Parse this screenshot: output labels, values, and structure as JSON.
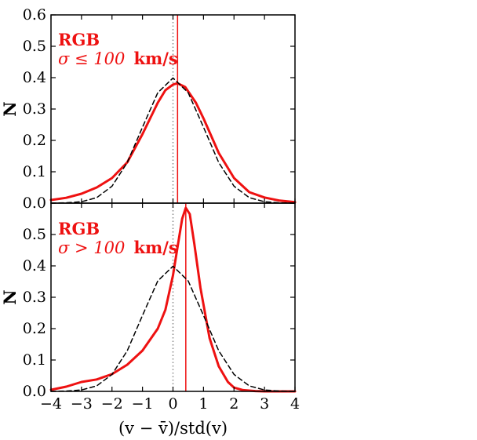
{
  "colors": {
    "primary": "#ee1111",
    "reference": "#000000",
    "zero_line": "#888888"
  },
  "chart_data": [
    {
      "type": "line",
      "panel": "top",
      "annotation": {
        "line1": "RGB",
        "line2_math": "σ ≤ 100",
        "line2_unit": "km/s"
      },
      "ylabel": "N",
      "xlim": [
        -4,
        4
      ],
      "ylim": [
        0,
        0.6
      ],
      "yticks": [
        "0.0",
        "0.1",
        "0.2",
        "0.3",
        "0.4",
        "0.5",
        "0.6"
      ],
      "vertical_line_x": 0.15,
      "series": [
        {
          "style": "solid-red",
          "x": [
            -4,
            -3.5,
            -3,
            -2.5,
            -2,
            -1.5,
            -1,
            -0.5,
            -0.25,
            0,
            0.15,
            0.4,
            0.75,
            1,
            1.5,
            2,
            2.5,
            3,
            3.5,
            4
          ],
          "y": [
            0.01,
            0.017,
            0.03,
            0.05,
            0.08,
            0.13,
            0.22,
            0.32,
            0.36,
            0.378,
            0.382,
            0.37,
            0.32,
            0.27,
            0.16,
            0.08,
            0.035,
            0.018,
            0.008,
            0.003
          ]
        },
        {
          "style": "dashed-black",
          "x": [
            -4,
            -3.5,
            -3,
            -2.5,
            -2,
            -1.5,
            -1,
            -0.5,
            0,
            0.5,
            1,
            1.5,
            2,
            2.5,
            3,
            3.5,
            4
          ],
          "y": [
            0.0001,
            0.0009,
            0.0044,
            0.0175,
            0.054,
            0.1295,
            0.242,
            0.352,
            0.399,
            0.352,
            0.242,
            0.1295,
            0.054,
            0.0175,
            0.0044,
            0.0009,
            0.0001
          ]
        }
      ]
    },
    {
      "type": "line",
      "panel": "bottom",
      "annotation": {
        "line1": "RGB",
        "line2_math": "σ > 100",
        "line2_unit": "km/s"
      },
      "ylabel": "N",
      "xlabel": "(v − v̄)/std(v)",
      "xlim": [
        -4,
        4
      ],
      "ylim": [
        0,
        0.6
      ],
      "yticks": [
        "0.0",
        "0.1",
        "0.2",
        "0.3",
        "0.4",
        "0.5"
      ],
      "xticks": [
        "−4",
        "−3",
        "−2",
        "−1",
        "0",
        "1",
        "2",
        "3",
        "4"
      ],
      "vertical_line_x": 0.42,
      "series": [
        {
          "style": "solid-red",
          "x": [
            -4,
            -3.5,
            -3,
            -2.5,
            -2,
            -1.5,
            -1,
            -0.5,
            -0.25,
            0,
            0.15,
            0.3,
            0.42,
            0.55,
            0.7,
            0.9,
            1.2,
            1.5,
            1.8,
            2,
            2.3,
            2.7,
            3,
            4
          ],
          "y": [
            0.005,
            0.015,
            0.03,
            0.038,
            0.055,
            0.085,
            0.13,
            0.2,
            0.26,
            0.37,
            0.46,
            0.55,
            0.585,
            0.565,
            0.47,
            0.33,
            0.17,
            0.08,
            0.03,
            0.012,
            0.004,
            0.001,
            0.0,
            0.0
          ]
        },
        {
          "style": "dashed-black",
          "x": [
            -4,
            -3.5,
            -3,
            -2.5,
            -2,
            -1.5,
            -1,
            -0.5,
            0,
            0.5,
            1,
            1.5,
            2,
            2.5,
            3,
            3.5,
            4
          ],
          "y": [
            0.0001,
            0.0009,
            0.0044,
            0.0175,
            0.054,
            0.1295,
            0.242,
            0.352,
            0.399,
            0.352,
            0.242,
            0.1295,
            0.054,
            0.0175,
            0.0044,
            0.0009,
            0.0001
          ]
        }
      ]
    }
  ]
}
